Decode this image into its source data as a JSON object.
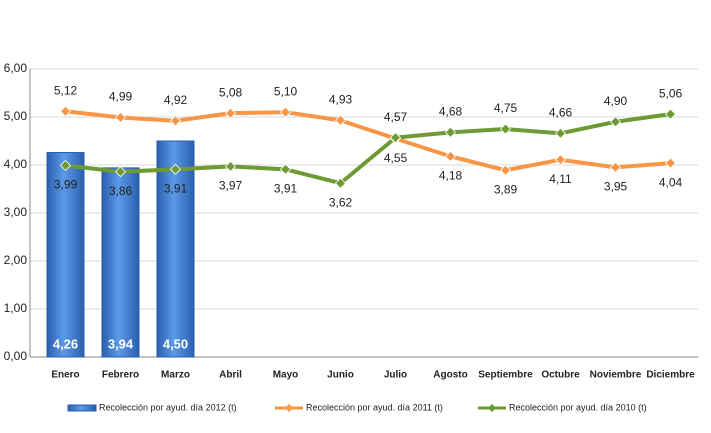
{
  "chart_data": {
    "type": "bar",
    "categories": [
      "Enero",
      "Febrero",
      "Marzo",
      "Abril",
      "Mayo",
      "Junio",
      "Julio",
      "Agosto",
      "Septiembre",
      "Octubre",
      "Noviembre",
      "Diciembre"
    ],
    "series": [
      {
        "name": "Recolección por ayud. día 2012 (t)",
        "type": "bar",
        "color": "#3a7bd5",
        "values": [
          4.26,
          3.94,
          4.5,
          null,
          null,
          null,
          null,
          null,
          null,
          null,
          null,
          null
        ],
        "value_labels": [
          "4,26",
          "3,94",
          "4,50",
          null,
          null,
          null,
          null,
          null,
          null,
          null,
          null,
          null
        ]
      },
      {
        "name": "Recolección por ayud. día 2011 (t)",
        "type": "line",
        "color": "#f79646",
        "values": [
          5.12,
          4.99,
          4.92,
          5.08,
          5.1,
          4.93,
          4.55,
          4.18,
          3.89,
          4.11,
          3.95,
          4.04
        ],
        "value_labels": [
          "5,12",
          "4,99",
          "4,92",
          "5,08",
          "5,10",
          "4,93",
          "4,55",
          "4,18",
          "3,89",
          "4,11",
          "3,95",
          "4,04"
        ]
      },
      {
        "name": "Recolección por ayud. día 2010 (t)",
        "type": "line",
        "color": "#6e9a33",
        "values": [
          3.99,
          3.86,
          3.91,
          3.97,
          3.91,
          3.62,
          4.57,
          4.68,
          4.75,
          4.66,
          4.9,
          5.06
        ],
        "value_labels": [
          "3,99",
          "3,86",
          "3,91",
          "3,97",
          "3,91",
          "3,62",
          "4,57",
          "4,68",
          "4,75",
          "4,66",
          "4,90",
          "5,06"
        ]
      }
    ],
    "ylim": [
      0,
      6
    ],
    "yticks": [
      {
        "value": 0,
        "label": "0,00"
      },
      {
        "value": 1,
        "label": "1,00"
      },
      {
        "value": 2,
        "label": "2,00"
      },
      {
        "value": 3,
        "label": "3,00"
      },
      {
        "value": 4,
        "label": "4,00"
      },
      {
        "value": 5,
        "label": "5,00"
      },
      {
        "value": 6,
        "label": "6,00"
      }
    ],
    "grid": true,
    "legend": "bottom"
  }
}
